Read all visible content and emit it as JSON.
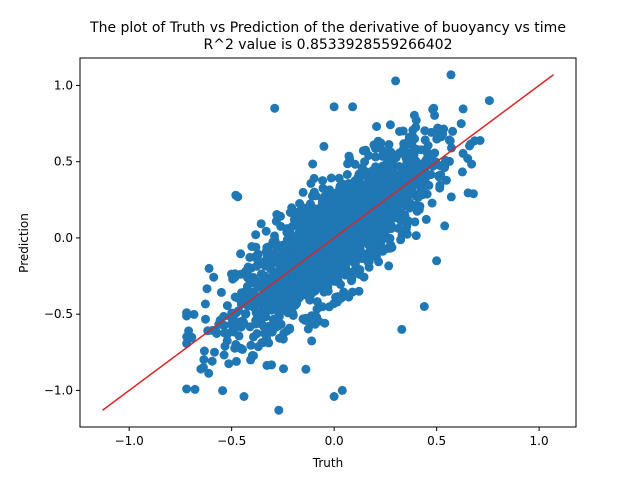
{
  "chart_data": {
    "type": "scatter",
    "title_line1": "The plot of Truth vs Prediction of the derivative of buoyancy vs time",
    "title_line2": "R^2 value is 0.8533928559266402",
    "xlabel": "Truth",
    "ylabel": "Prediction",
    "xlim": [
      -1.24,
      1.18
    ],
    "ylim": [
      -1.24,
      1.18
    ],
    "xticks": [
      -1.0,
      -0.5,
      0.0,
      0.5,
      1.0
    ],
    "xtick_labels": [
      "−1.0",
      "−0.5",
      "0.0",
      "0.5",
      "1.0"
    ],
    "yticks": [
      -1.0,
      -0.5,
      0.0,
      0.5,
      1.0
    ],
    "ytick_labels": [
      "−1.0",
      "−0.5",
      "0.0",
      "0.5",
      "1.0"
    ],
    "grid": false,
    "legend": "none",
    "series": [
      {
        "kind": "scatter",
        "color": "#1f77b4",
        "point_count_estimate": 3000,
        "approx_slope": 1.0,
        "approx_r2": 0.853,
        "x_range": [
          -0.72,
          0.78
        ],
        "y_range": [
          -1.13,
          1.07
        ],
        "outliers": [
          {
            "x": -0.29,
            "y": 0.85
          },
          {
            "x": -0.05,
            "y": 0.6
          },
          {
            "x": -0.48,
            "y": 0.28
          },
          {
            "x": -0.47,
            "y": 0.27
          },
          {
            "x": 0.0,
            "y": 0.86
          },
          {
            "x": 0.09,
            "y": 0.86
          },
          {
            "x": 0.3,
            "y": 1.03
          },
          {
            "x": 0.57,
            "y": 1.07
          },
          {
            "x": -0.44,
            "y": -1.04
          },
          {
            "x": -0.27,
            "y": -1.13
          },
          {
            "x": 0.0,
            "y": -1.04
          },
          {
            "x": 0.04,
            "y": -1.0
          },
          {
            "x": -0.71,
            "y": -0.61
          },
          {
            "x": 0.33,
            "y": -0.6
          },
          {
            "x": 0.44,
            "y": -0.45
          },
          {
            "x": 0.5,
            "y": -0.15
          },
          {
            "x": -0.61,
            "y": -0.2
          },
          {
            "x": -0.65,
            "y": -0.86
          },
          {
            "x": 0.62,
            "y": 0.75
          }
        ]
      },
      {
        "kind": "line",
        "color": "#d62728",
        "x": [
          -1.13,
          1.07
        ],
        "y": [
          -1.13,
          1.07
        ]
      }
    ]
  }
}
